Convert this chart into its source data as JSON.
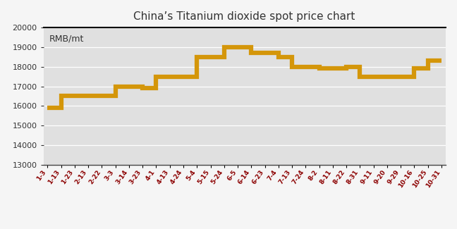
{
  "title": "China’s Titanium dioxide spot price chart",
  "ylabel_text": "RMB/mt",
  "line_color": "#D4960A",
  "fig_bg_color": "#F5F5F5",
  "plot_bg_color": "#E0E0E0",
  "title_color": "#333333",
  "tick_color": "#8B0000",
  "ylim": [
    13000,
    20000
  ],
  "yticks": [
    13000,
    14000,
    15000,
    16000,
    17000,
    18000,
    19000,
    20000
  ],
  "x_labels": [
    "1-3",
    "1-13",
    "1-23",
    "2-13",
    "2-22",
    "3-3",
    "3-14",
    "3-23",
    "4-1",
    "4-13",
    "4-24",
    "5-4",
    "5-15",
    "5-24",
    "6-5",
    "6-14",
    "6-23",
    "7-4",
    "7-13",
    "7-24",
    "8-2",
    "8-11",
    "8-22",
    "8-31",
    "9-11",
    "9-20",
    "9-29",
    "10-16",
    "10-25",
    "10-31"
  ],
  "y_values": [
    15900,
    16500,
    16500,
    16500,
    16500,
    17000,
    17000,
    16900,
    17500,
    17500,
    17500,
    18500,
    18500,
    19000,
    19000,
    18700,
    18700,
    18500,
    18000,
    18000,
    17900,
    17900,
    18000,
    17500,
    17500,
    17500,
    17500,
    17900,
    18300,
    18300
  ],
  "line_width": 4.5,
  "title_fontsize": 11,
  "ytick_fontsize": 8,
  "xtick_fontsize": 6.5,
  "rmb_label_fontsize": 9
}
